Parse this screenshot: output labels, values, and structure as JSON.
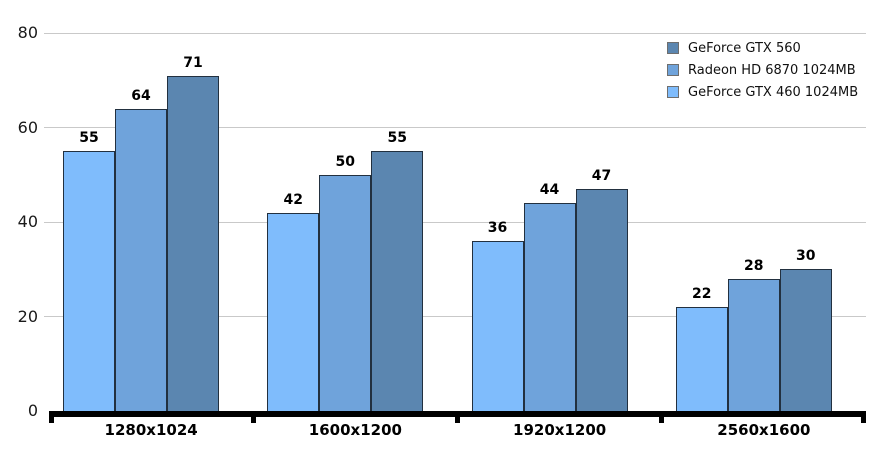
{
  "chart_data": {
    "type": "bar",
    "title": "",
    "xlabel": "",
    "ylabel": "",
    "categories": [
      "1280x1024",
      "1600x1200",
      "1920x1200",
      "2560x1600"
    ],
    "series": [
      {
        "name": "GeForce GTX 560",
        "color": "#5b86b0",
        "values": [
          71,
          55,
          47,
          30
        ]
      },
      {
        "name": "Radeon HD 6870 1024MB",
        "color": "#6fa3db",
        "values": [
          64,
          50,
          44,
          28
        ]
      },
      {
        "name": "GeForce GTX 460 1024MB",
        "color": "#7fbcfc",
        "values": [
          55,
          42,
          36,
          22
        ]
      }
    ],
    "bars_within_group_order": "reverse-of-legend (lightest GTX 460 on left, darkest GTX 560 on right)",
    "value_labels": true,
    "ylim": [
      0,
      80
    ],
    "yticks": [
      0,
      20,
      40,
      60,
      80
    ],
    "grid": true,
    "legend_position": "top-right",
    "colors": {
      "gridline": "#c9c9c9",
      "axis": "#000000",
      "bar_border": "#22303f",
      "background": "#ffffff"
    }
  }
}
